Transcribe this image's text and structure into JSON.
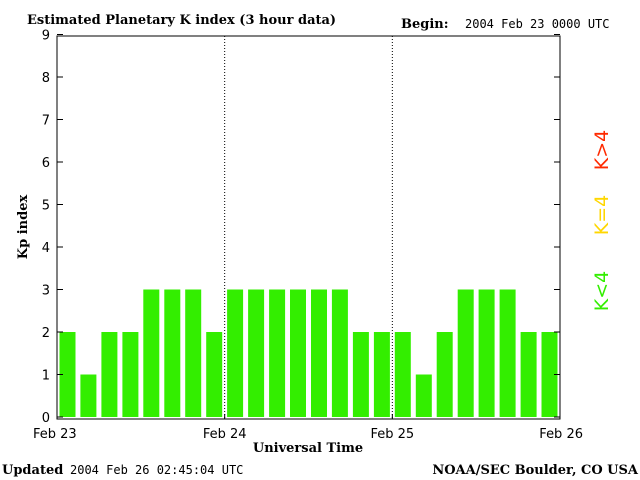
{
  "header": {
    "title": "Estimated Planetary K index (3 hour data)",
    "begin_label": "Begin:",
    "begin_value": "2004 Feb 23 0000 UTC"
  },
  "footer": {
    "updated_label": "Updated",
    "updated_value": "2004 Feb 26 02:45:04 UTC",
    "source": "NOAA/SEC Boulder, CO USA"
  },
  "legend": {
    "high": {
      "text": "K>4",
      "color": "#ff2a00"
    },
    "equal": {
      "text": "K=4",
      "color": "#ffd700"
    },
    "low": {
      "text": "K<4",
      "color": "#33ee00"
    }
  },
  "chart_data": {
    "type": "bar",
    "title": "Estimated Planetary K index (3 hour data)",
    "xlabel": "Universal Time",
    "ylabel": "Kp index",
    "ylim": [
      0,
      9
    ],
    "yticks": [
      0,
      1,
      2,
      3,
      4,
      5,
      6,
      7,
      8,
      9
    ],
    "day_labels": [
      "Feb 23",
      "Feb 24",
      "Feb 25",
      "Feb 26"
    ],
    "day_separators": [
      "Feb 24",
      "Feb 25"
    ],
    "categories": [
      "Feb 23 00",
      "Feb 23 03",
      "Feb 23 06",
      "Feb 23 09",
      "Feb 23 12",
      "Feb 23 15",
      "Feb 23 18",
      "Feb 23 21",
      "Feb 24 00",
      "Feb 24 03",
      "Feb 24 06",
      "Feb 24 09",
      "Feb 24 12",
      "Feb 24 15",
      "Feb 24 18",
      "Feb 24 21",
      "Feb 25 00",
      "Feb 25 03",
      "Feb 25 06",
      "Feb 25 09",
      "Feb 25 12",
      "Feb 25 15",
      "Feb 25 18",
      "Feb 25 21"
    ],
    "values": [
      2,
      1,
      2,
      2,
      3,
      3,
      3,
      2,
      3,
      3,
      3,
      3,
      3,
      3,
      2,
      2,
      2,
      1,
      2,
      3,
      3,
      3,
      2,
      2
    ],
    "bar_color": "#33ee00",
    "grid": false
  }
}
